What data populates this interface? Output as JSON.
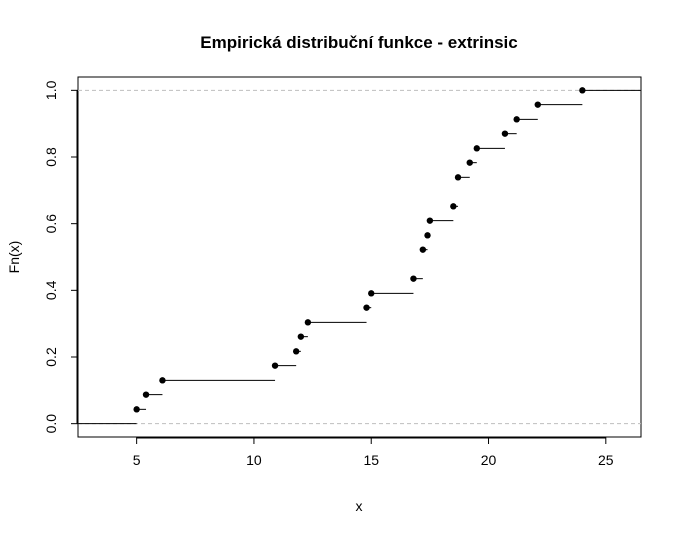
{
  "chart_data": {
    "type": "step",
    "title": "Empirická distribuční funkce - extrinsic",
    "xlabel": "x",
    "ylabel": "Fn(x)",
    "xlim": [
      2.5,
      26.5
    ],
    "ylim": [
      -0.04,
      1.04
    ],
    "x_ticks": [
      5,
      10,
      15,
      20,
      25
    ],
    "y_ticks": [
      0.0,
      0.2,
      0.4,
      0.6,
      0.8,
      1.0
    ],
    "y_tick_labels": [
      "0.0",
      "0.2",
      "0.4",
      "0.6",
      "0.8",
      "1.0"
    ],
    "reference_lines": [
      0,
      1
    ],
    "colors": {
      "steps": "#000000",
      "reference": "#bebebe"
    },
    "points": [
      {
        "x": 5.0,
        "y": 0.043
      },
      {
        "x": 5.4,
        "y": 0.087
      },
      {
        "x": 6.1,
        "y": 0.13
      },
      {
        "x": 10.9,
        "y": 0.174
      },
      {
        "x": 11.8,
        "y": 0.217
      },
      {
        "x": 12.0,
        "y": 0.261
      },
      {
        "x": 12.3,
        "y": 0.304
      },
      {
        "x": 14.8,
        "y": 0.348
      },
      {
        "x": 15.0,
        "y": 0.391
      },
      {
        "x": 16.8,
        "y": 0.435
      },
      {
        "x": 17.2,
        "y": 0.522
      },
      {
        "x": 17.4,
        "y": 0.565
      },
      {
        "x": 17.5,
        "y": 0.609
      },
      {
        "x": 18.5,
        "y": 0.652
      },
      {
        "x": 18.7,
        "y": 0.739
      },
      {
        "x": 19.2,
        "y": 0.783
      },
      {
        "x": 19.5,
        "y": 0.826
      },
      {
        "x": 20.7,
        "y": 0.87
      },
      {
        "x": 21.2,
        "y": 0.913
      },
      {
        "x": 22.1,
        "y": 0.957
      },
      {
        "x": 24.0,
        "y": 1.0
      }
    ]
  }
}
